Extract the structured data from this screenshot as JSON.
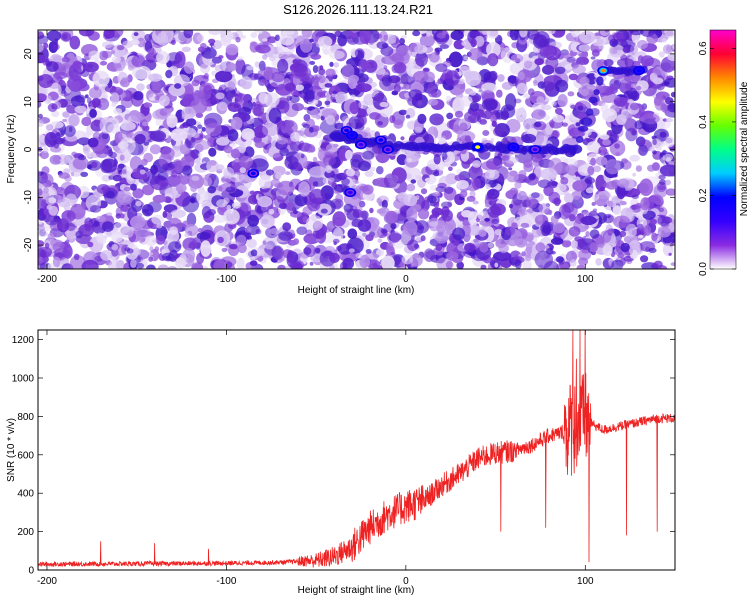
{
  "figure_title": "S126.2026.111.13.24.R21",
  "chart_data": [
    {
      "type": "heatmap",
      "title": "S126.2026.111.13.24.R21",
      "xlabel": "Height of straight line (km)",
      "ylabel": "Frequency (Hz)",
      "xlim": [
        -205,
        150
      ],
      "ylim": [
        -25,
        25
      ],
      "x_ticks": [
        -200,
        -100,
        0,
        100
      ],
      "y_ticks": [
        -20,
        -10,
        0,
        10,
        20
      ],
      "colorbar": {
        "label": "Normalized spectral amplitude",
        "range": [
          0.0,
          0.65
        ],
        "ticks": [
          "0.0",
          "0.2",
          "0.4",
          "0.6"
        ],
        "colormap": [
          "#ffffff",
          "#8a2be2",
          "#3300ff",
          "#0000ff",
          "#00ccff",
          "#00ff88",
          "#66ff00",
          "#ffff00",
          "#ff8800",
          "#ff0033",
          "#ff00cc"
        ]
      },
      "ridge_points": [
        {
          "x": -85,
          "y": -5,
          "v": 0.18
        },
        {
          "x": -33,
          "y": 4,
          "v": 0.2
        },
        {
          "x": -30,
          "y": 3,
          "v": 0.22
        },
        {
          "x": -25,
          "y": 1,
          "v": 0.16
        },
        {
          "x": -14,
          "y": 2,
          "v": 0.2
        },
        {
          "x": -10,
          "y": 0,
          "v": 0.14
        },
        {
          "x": -31,
          "y": -9,
          "v": 0.12
        },
        {
          "x": 40,
          "y": 0.5,
          "v": 0.48
        },
        {
          "x": 60,
          "y": 0.5,
          "v": 0.22
        },
        {
          "x": 72,
          "y": 0,
          "v": 0.14
        },
        {
          "x": 110,
          "y": 16.5,
          "v": 0.55
        },
        {
          "x": 130,
          "y": 16.5,
          "v": 0.22
        }
      ]
    },
    {
      "type": "line",
      "xlabel": "Height of straight line (km)",
      "ylabel": "SNR (10 * v/v)",
      "xlim": [
        -205,
        150
      ],
      "ylim": [
        0,
        1250
      ],
      "x_ticks": [
        -200,
        -100,
        0,
        100
      ],
      "y_ticks": [
        0,
        200,
        400,
        600,
        800,
        1000,
        1200
      ],
      "color": "#ee2222",
      "trend": {
        "x": [
          -205,
          -100,
          -70,
          -50,
          -40,
          -30,
          -20,
          -10,
          0,
          10,
          20,
          30,
          40,
          50,
          60,
          70,
          80,
          85,
          90,
          100,
          110,
          120,
          130,
          140,
          150
        ],
        "y": [
          30,
          35,
          40,
          50,
          70,
          120,
          220,
          290,
          330,
          360,
          440,
          500,
          580,
          610,
          620,
          650,
          700,
          710,
          730,
          780,
          730,
          750,
          770,
          790,
          790
        ]
      },
      "spikes": [
        {
          "x": -170,
          "y": 150
        },
        {
          "x": -140,
          "y": 140
        },
        {
          "x": -110,
          "y": 110
        },
        {
          "x": 53,
          "y": 200
        },
        {
          "x": 78,
          "y": 220
        },
        {
          "x": 93,
          "y": 1250
        },
        {
          "x": 95,
          "y": 1100
        },
        {
          "x": 97,
          "y": 1250
        },
        {
          "x": 100,
          "y": 1250
        },
        {
          "x": 102,
          "y": 40
        },
        {
          "x": 123,
          "y": 180
        },
        {
          "x": 140,
          "y": 200
        }
      ]
    }
  ]
}
